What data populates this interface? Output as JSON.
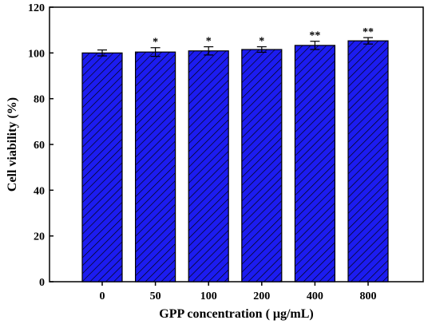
{
  "chart_data": {
    "type": "bar",
    "title": "",
    "xlabel": "GPP concentration ( μg/mL)",
    "ylabel": "Cell viability (%)",
    "categories": [
      "0",
      "50",
      "100",
      "200",
      "400",
      "800"
    ],
    "values": [
      100.0,
      100.4,
      100.9,
      101.5,
      103.3,
      105.3
    ],
    "errors": [
      1.3,
      1.9,
      1.8,
      1.2,
      1.8,
      1.4
    ],
    "annotations": [
      "",
      "*",
      "*",
      "*",
      "**",
      "**"
    ],
    "ylim": [
      0,
      120
    ],
    "yticks": [
      0,
      20,
      40,
      60,
      80,
      100,
      120
    ],
    "bar_fill_color": "#1c1cf0",
    "bar_hatch_color": "#000000",
    "grid": false,
    "legend": "none"
  }
}
